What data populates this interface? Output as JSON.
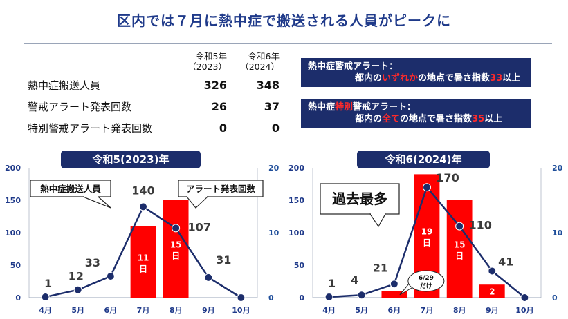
{
  "title": "区内では７月に熱中症で搬送される人員がピークに",
  "table": {
    "col1_header": [
      "令和5年",
      "（2023）"
    ],
    "col2_header": [
      "令和6年",
      "（2024）"
    ],
    "rows": [
      {
        "label": "熱中症搬送人員",
        "v1": "326",
        "v2": "348"
      },
      {
        "label": "警戒アラート発表回数",
        "v1": "26",
        "v2": "37"
      },
      {
        "label": "特別警戒アラート発表回数",
        "v1": "0",
        "v2": "0"
      }
    ]
  },
  "alerts": [
    {
      "line1_a": "熱中症警戒アラート：",
      "line1_red": "",
      "line1_b": "",
      "line2_a": "都内の",
      "line2_red": "いずれか",
      "line2_b": "の地点で暑さ指数",
      "line2_num": "33",
      "line2_c": "以上"
    },
    {
      "line1_a": "熱中症",
      "line1_red": "特別",
      "line1_b": "警戒アラート：",
      "line2_a": "都内の",
      "line2_red": "全て",
      "line2_b": "の地点で暑さ指数",
      "line2_num": "35",
      "line2_c": "以上"
    }
  ],
  "colors": {
    "bar": "#ff0000",
    "line": "#1c2d6b",
    "header": "#1c2d6b",
    "title": "#1f3a8a",
    "right_axis": "#1f4e9a"
  },
  "chart_data": [
    {
      "type": "bar+line",
      "title": "令和5(2023)年",
      "categories": [
        "4月",
        "5月",
        "6月",
        "7月",
        "8月",
        "9月",
        "10月"
      ],
      "left_axis": {
        "ylim": [
          0,
          200
        ],
        "ticks": [
          0,
          50,
          100,
          150,
          200
        ]
      },
      "right_axis": {
        "ylim": [
          0,
          20
        ],
        "ticks": [
          0,
          10,
          20
        ]
      },
      "series": [
        {
          "name": "熱中症搬送人員",
          "type": "line",
          "axis": "left",
          "values": [
            1,
            12,
            33,
            140,
            107,
            31,
            0
          ],
          "labels": [
            "1",
            "12",
            "33",
            "140",
            "107",
            "31",
            ""
          ]
        },
        {
          "name": "アラート発表回数",
          "type": "bar",
          "axis": "right",
          "values": [
            0,
            0,
            0,
            11,
            15,
            0,
            0
          ],
          "labels": [
            "",
            "",
            "",
            "11日",
            "15日",
            "",
            ""
          ]
        }
      ],
      "callouts": [
        "熱中症搬送人員",
        "アラート発表回数"
      ]
    },
    {
      "type": "bar+line",
      "title": "令和6(2024)年",
      "categories": [
        "4月",
        "5月",
        "6月",
        "7月",
        "8月",
        "9月",
        "10月"
      ],
      "left_axis": {
        "ylim": [
          0,
          200
        ],
        "ticks": [
          0,
          50,
          100,
          150,
          200
        ]
      },
      "right_axis": {
        "ylim": [
          0,
          20
        ],
        "ticks": [
          0,
          10,
          20
        ]
      },
      "series": [
        {
          "type": "line",
          "axis": "left",
          "values": [
            1,
            4,
            21,
            170,
            110,
            41,
            0
          ],
          "labels": [
            "1",
            "4",
            "21",
            "170",
            "110",
            "41",
            ""
          ]
        },
        {
          "type": "bar",
          "axis": "right",
          "values": [
            0,
            0,
            1,
            19,
            15,
            2,
            0
          ],
          "labels": [
            "",
            "",
            "",
            "19日",
            "15日",
            "2",
            ""
          ]
        }
      ],
      "callouts": [
        "過去最多",
        "6/29だけ"
      ]
    }
  ]
}
